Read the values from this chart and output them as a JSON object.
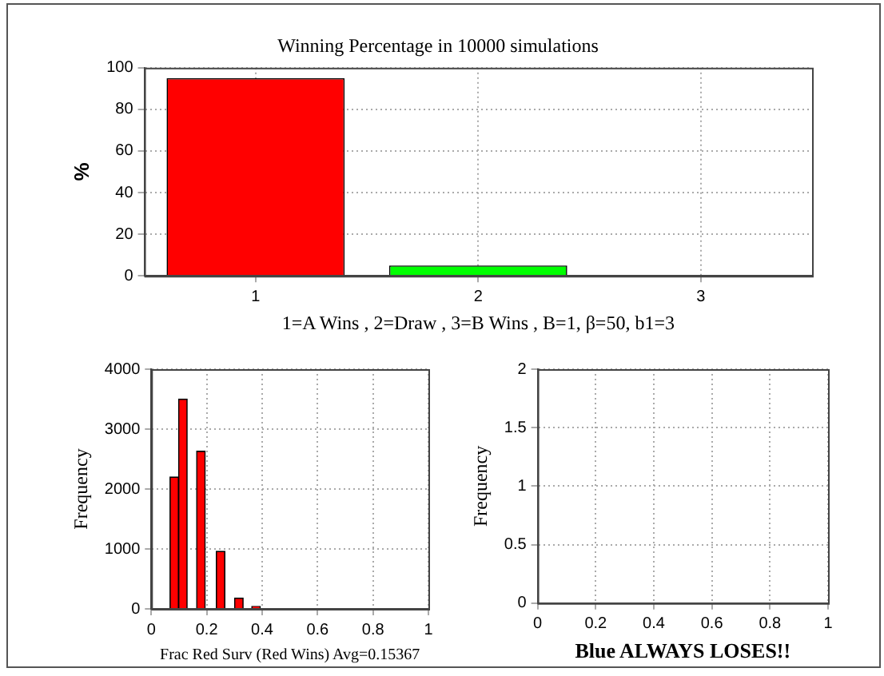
{
  "chart_data": [
    {
      "type": "bar",
      "title": "Winning Percentage in 10000 simulations",
      "xlabel": "1=A Wins , 2=Draw , 3=B Wins , B=1, β=50, b1=3",
      "ylabel": "%",
      "categories": [
        "1",
        "2",
        "3"
      ],
      "values": [
        95,
        5,
        0
      ],
      "colors": [
        "#ff0000",
        "#00ff00",
        "#0000ff"
      ],
      "ylim": [
        0,
        100
      ],
      "yticks": [
        0,
        20,
        40,
        60,
        80,
        100
      ],
      "grid": true
    },
    {
      "type": "bar",
      "xlabel": "Frac Red Surv (Red Wins) Avg=0.15367",
      "ylabel": "Frequency",
      "x": [
        0.083,
        0.114,
        0.179,
        0.25,
        0.316,
        0.378
      ],
      "values": [
        2200,
        3500,
        2630,
        960,
        180,
        40
      ],
      "color": "#ff0000",
      "xlim": [
        0,
        1
      ],
      "xticks": [
        0,
        0.2,
        0.4,
        0.6,
        0.8,
        1
      ],
      "ylim": [
        0,
        4000
      ],
      "yticks": [
        0,
        1000,
        2000,
        3000,
        4000
      ],
      "grid": true
    },
    {
      "type": "bar",
      "xlabel": "Blue ALWAYS LOSES!!",
      "ylabel": "Frequency",
      "xlim": [
        0,
        1
      ],
      "xticks": [
        0,
        0.2,
        0.4,
        0.6,
        0.8,
        1
      ],
      "ylim": [
        0,
        2
      ],
      "yticks": [
        0,
        0.5,
        1,
        1.5,
        2
      ],
      "grid": true
    }
  ]
}
